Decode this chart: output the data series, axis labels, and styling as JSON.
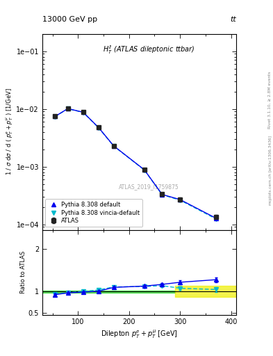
{
  "title_left": "13000 GeV pp",
  "title_right": "tt",
  "panel_title": "$H_T^{ll}$ (ATLAS dileptonic ttbar)",
  "watermark": "ATLAS_2019_I1759875",
  "xlabel": "Dilepton $p_T^e + p_T^{\\mu}$ [GeV]",
  "ylabel_main": "1 / $\\sigma$ d$\\sigma$ / d ( $p_T^e + p_T^{\\mu}$ ) [1/GeV]",
  "ylabel_ratio": "Ratio to ATLAS",
  "x_data": [
    55,
    80,
    110,
    140,
    170,
    230,
    265,
    300,
    370
  ],
  "atlas_y": [
    0.0075,
    0.0102,
    0.0088,
    0.0048,
    0.0023,
    0.00088,
    0.00033,
    0.00027,
    0.000135
  ],
  "atlas_yerr": [
    0.0004,
    0.0005,
    0.0003,
    0.0002,
    0.00012,
    5e-05,
    2e-05,
    1.8e-05,
    1e-05
  ],
  "pythia_default_y": [
    0.0074,
    0.0101,
    0.00875,
    0.00478,
    0.00228,
    0.00088,
    0.000328,
    0.000268,
    0.000128
  ],
  "pythia_vincia_y": [
    0.00735,
    0.01005,
    0.0087,
    0.00473,
    0.00226,
    0.00087,
    0.000324,
    0.000262,
    0.000124
  ],
  "ratio_default_y": [
    0.93,
    0.97,
    0.99,
    1.01,
    1.1,
    1.13,
    1.17,
    1.22,
    1.28
  ],
  "ratio_default_yerr": [
    0.02,
    0.015,
    0.015,
    0.015,
    0.025,
    0.025,
    0.035,
    0.045,
    0.06
  ],
  "ratio_vincia_y": [
    0.94,
    0.975,
    1.005,
    1.04,
    1.11,
    1.12,
    1.14,
    1.08,
    1.05
  ],
  "ratio_vincia_yerr": [
    0.02,
    0.015,
    0.015,
    0.015,
    0.025,
    0.025,
    0.035,
    0.045,
    0.06
  ],
  "green_band_xlim": [
    30,
    290
  ],
  "green_band_ylim": [
    0.97,
    1.03
  ],
  "yellow_band_xlim": [
    290,
    410
  ],
  "yellow_band_ylim": [
    0.87,
    1.13
  ],
  "xlim": [
    30,
    410
  ],
  "ylim_main": [
    8e-05,
    0.2
  ],
  "ylim_ratio": [
    0.45,
    2.45
  ],
  "color_atlas": "#222222",
  "color_pythia_default": "#0000ee",
  "color_pythia_vincia": "#00bbcc",
  "color_green_band": "#00cc00",
  "color_yellow_band": "#eeee00",
  "right_texts": [
    "Rivet 3.1.10, ≥ 2.8M events",
    "[arXiv:1306.3436]",
    "mcplots.cern.ch"
  ]
}
